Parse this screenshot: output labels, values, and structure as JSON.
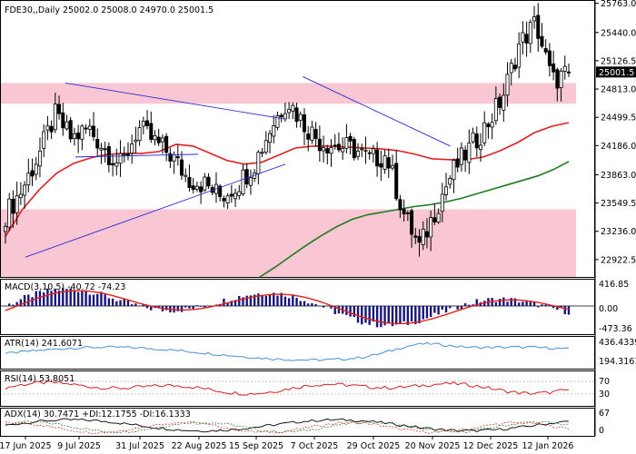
{
  "colors": {
    "up": "#1a1a7a",
    "down": "#000000",
    "bear_zone": "#f9c6d3",
    "ma_fast": "#e02020",
    "ma_slow": "#1f7a1f",
    "trendline": "#2b2bd6",
    "macd_hist": "#16167a",
    "macd_signal": "#e02020",
    "atr_line": "#4a8fd4",
    "rsi_line": "#d42020",
    "adx_line": "#000000",
    "di_plus": "#1f7a1f",
    "di_minus": "#d42020"
  },
  "chart_data": [
    {
      "type": "candlestick",
      "title": "FDE30,,Daily  25002.0 25008.0 24970.0 25001.5",
      "symbol": "FDE30",
      "timeframe": "Daily",
      "ohlc_last": {
        "open": 25002.0,
        "high": 25008.0,
        "low": 24970.0,
        "close": 25001.5
      },
      "current_price_label": "25001.5",
      "ylim": [
        22730,
        25800
      ],
      "y_ticks": [
        "25763.0",
        "25440.0",
        "25126.5",
        "24813.0",
        "24499.5",
        "24186.0",
        "23863.0",
        "23549.5",
        "23236.0",
        "22922.5"
      ],
      "x_ticks": [
        "17 Jun 2025",
        "9 Jul 2025",
        "31 Jul 2025",
        "22 Aug 2025",
        "15 Sep 2025",
        "7 Oct 2025",
        "29 Oct 2025",
        "20 Nov 2025",
        "12 Dec 2025",
        "12 Jan 2026"
      ],
      "zones": [
        {
          "from": 24650,
          "to": 24880
        },
        {
          "from": 22730,
          "to": 23480
        }
      ],
      "trendlines": [
        {
          "from": [
            "17 Jun 2025",
            22950
          ],
          "to": [
            "29 Sep 2025",
            23980
          ]
        },
        {
          "from": [
            "3 Jul 2025",
            24880
          ],
          "to": [
            "29 Sep 2025",
            24480
          ]
        },
        {
          "from": [
            "7 Jul 2025",
            24060
          ],
          "to": [
            "25 Aug 2025",
            24090
          ]
        },
        {
          "from": [
            "6 Oct 2025",
            24950
          ],
          "to": [
            "4 Dec 2025",
            24180
          ]
        }
      ],
      "closes_weekly": [
        23420,
        23700,
        24080,
        24520,
        24260,
        24380,
        24150,
        23960,
        24380,
        24230,
        24080,
        23820,
        23760,
        23620,
        23760,
        23980,
        24380,
        24700,
        24430,
        24230,
        24180,
        24150,
        24030,
        24080,
        23450,
        23050,
        23500,
        23900,
        24150,
        24400,
        24720,
        25300,
        25550,
        24900,
        25000
      ],
      "ma_fast": [
        23180,
        23480,
        23700,
        23880,
        23990,
        24050,
        24090,
        24100,
        24100,
        24120,
        24200,
        24180,
        24100,
        24020,
        23980,
        24000,
        24080,
        24160,
        24180,
        24180,
        24170,
        24160,
        24150,
        24130,
        24090,
        24040,
        24030,
        24030,
        24060,
        24130,
        24220,
        24330,
        24400,
        24440
      ],
      "ma_slow": [
        22730,
        22840,
        22960,
        23080,
        23190,
        23290,
        23370,
        23420,
        23450,
        23480,
        23510,
        23530,
        23560,
        23600,
        23650,
        23700,
        23750,
        23800,
        23850,
        23920,
        24010
      ],
      "indicator_panels": [
        {
          "name": "MACD",
          "label": "MACD(3,10,5) -40.72 -74.23",
          "y_ticks": [
            "416.85",
            "0.00",
            "-473.36"
          ]
        },
        {
          "name": "ATR",
          "label": "ATR(14) 241.6071",
          "y_ticks": [
            "436.4339",
            "194.3161"
          ]
        },
        {
          "name": "RSI",
          "label": "RSI(14) 53.8051",
          "y_ticks": [
            "70",
            "30"
          ]
        },
        {
          "name": "ADX",
          "label": "ADX(14) 30.7471 +DI:12.1755 -DI:16.1333",
          "y_ticks": [
            "67",
            "0"
          ]
        }
      ]
    }
  ]
}
